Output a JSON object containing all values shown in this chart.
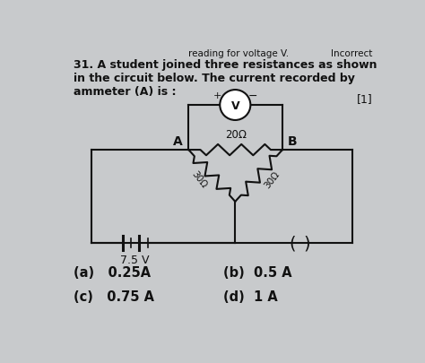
{
  "title_line1": "31. A student joined three resistances as shown",
  "title_line2": "in the circuit below. The current recorded by",
  "title_line3": "ammeter (A) is :",
  "mark": "[1]",
  "top_partial_left": "reading for voltage V.",
  "top_partial_right": "Incorrect",
  "options": [
    "(a)   0.25A",
    "(b)  0.5 A",
    "(c)   0.75 A",
    "(d)  1 A"
  ],
  "resistor_top": "20Ω",
  "resistor_left": "30Ω",
  "resistor_right": "30Ω",
  "voltage": "7.5 V",
  "node_A": "A",
  "node_B": "B",
  "voltmeter_label": "V",
  "bg_color": "#c8cacc",
  "text_color": "#111111",
  "line_color": "#111111"
}
